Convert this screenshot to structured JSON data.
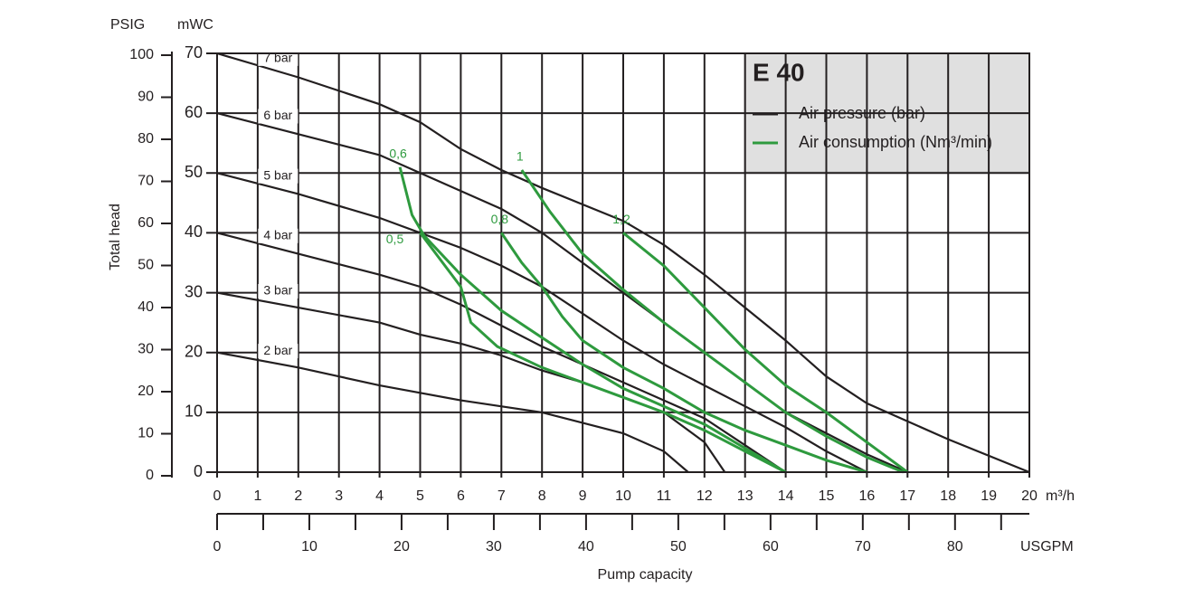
{
  "chart_data": {
    "type": "line",
    "title": "E 40",
    "x_label": "Pump capacity",
    "y_label": "Total head",
    "x_unit": "m³/h",
    "x2_unit": "USGPM",
    "y_unit": "mWC",
    "y2_unit": "PSIG",
    "xlim": [
      0,
      20
    ],
    "xticks": [
      0,
      1,
      2,
      3,
      4,
      5,
      6,
      7,
      8,
      9,
      10,
      11,
      12,
      13,
      14,
      15,
      16,
      17,
      18,
      19,
      20
    ],
    "ylim": [
      0,
      70
    ],
    "yticks": [
      0,
      10,
      20,
      30,
      40,
      50,
      60,
      70
    ],
    "y2lim": [
      0,
      100
    ],
    "y2ticks": [
      0,
      10,
      20,
      30,
      40,
      50,
      60,
      70,
      80,
      90,
      100
    ],
    "x2lim": [
      0,
      88.06
    ],
    "x2ticks": [
      0,
      10,
      20,
      30,
      40,
      50,
      60,
      70,
      80
    ],
    "x2minor_ticks": [
      5,
      15,
      25,
      35,
      45,
      55,
      65,
      75,
      85
    ],
    "grid": true,
    "legend": {
      "position": "upper right",
      "items": [
        {
          "label": "Air pressure (bar)",
          "color": "#231f20"
        },
        {
          "label": "Air consumption (Nm³/min)",
          "color": "#2e9a3e"
        }
      ]
    },
    "series": [
      {
        "name": "7 bar",
        "group": 0,
        "color": "#231f20",
        "x": [
          0,
          2,
          4,
          5,
          6,
          7,
          8,
          10,
          11,
          12,
          13,
          14,
          15,
          16,
          18,
          20
        ],
        "values": [
          70,
          66,
          61.5,
          58.5,
          54,
          50.5,
          47.5,
          42,
          38,
          33,
          27.5,
          22,
          16,
          11.5,
          5.5,
          0
        ]
      },
      {
        "name": "6 bar",
        "group": 0,
        "color": "#231f20",
        "x": [
          0,
          2,
          4,
          5,
          6,
          7,
          8,
          9,
          10,
          11,
          12,
          13,
          14,
          15,
          16,
          17
        ],
        "values": [
          60,
          56.5,
          53,
          50,
          47,
          44,
          40,
          35,
          30,
          25,
          20,
          15,
          10,
          6.5,
          3,
          0
        ]
      },
      {
        "name": "5 bar",
        "group": 0,
        "color": "#231f20",
        "x": [
          0,
          2,
          4,
          5,
          6,
          7,
          8,
          9,
          10,
          11,
          12,
          13,
          14,
          15,
          16
        ],
        "values": [
          50,
          46.5,
          42.5,
          40,
          37.5,
          34.5,
          31,
          26.5,
          22,
          18,
          14.5,
          11,
          7.5,
          3.5,
          0
        ]
      },
      {
        "name": "4 bar",
        "group": 0,
        "color": "#231f20",
        "x": [
          0,
          2,
          4,
          5,
          6,
          7,
          8,
          9,
          10,
          11,
          12,
          13,
          14
        ],
        "values": [
          40,
          36.5,
          33,
          31,
          28,
          24.5,
          21,
          18,
          15,
          12,
          9,
          4.5,
          0
        ]
      },
      {
        "name": "3 bar",
        "group": 0,
        "color": "#231f20",
        "x": [
          0,
          2,
          4,
          5,
          6,
          7,
          8,
          9,
          10,
          11,
          12,
          12.5
        ],
        "values": [
          30,
          27.5,
          25,
          23,
          21.5,
          19.5,
          17,
          15,
          12.5,
          10,
          5,
          0
        ]
      },
      {
        "name": "2 bar",
        "group": 0,
        "color": "#231f20",
        "x": [
          0,
          2,
          4,
          6,
          8,
          10,
          11,
          11.6
        ],
        "values": [
          20,
          17.5,
          14.5,
          12,
          10,
          6.5,
          3.5,
          0
        ]
      },
      {
        "name": "0,6",
        "group": 1,
        "color": "#2e9a3e",
        "x": [
          4.5,
          4.8,
          5.1,
          6,
          7,
          8,
          9,
          10,
          11,
          12,
          13,
          14
        ],
        "values": [
          51,
          43,
          39.5,
          33,
          27,
          22.5,
          18,
          14,
          11,
          8,
          4,
          0
        ]
      },
      {
        "name": "0,5",
        "group": 1,
        "color": "#2e9a3e",
        "x": [
          5,
          6,
          6.25,
          6.9,
          8,
          9,
          10,
          11,
          12,
          13,
          14
        ],
        "values": [
          40,
          31,
          25,
          21,
          17.5,
          15,
          12.5,
          10,
          7,
          3.5,
          0
        ]
      },
      {
        "name": "0,8",
        "group": 1,
        "color": "#2e9a3e",
        "x": [
          7,
          7.5,
          8,
          8.5,
          9,
          10,
          11,
          12,
          13,
          14,
          15,
          16
        ],
        "values": [
          40,
          35,
          31,
          26,
          22,
          17.5,
          14,
          10,
          7,
          4.5,
          2,
          0
        ]
      },
      {
        "name": "1",
        "group": 1,
        "color": "#2e9a3e",
        "x": [
          7.5,
          8.2,
          9,
          10,
          11,
          12,
          13,
          14,
          15,
          16,
          16.9
        ],
        "values": [
          50.5,
          43.5,
          36.5,
          30.5,
          25,
          20,
          15,
          10,
          6,
          2.5,
          0
        ]
      },
      {
        "name": "1,2",
        "group": 1,
        "color": "#2e9a3e",
        "x": [
          10,
          11,
          12,
          13,
          14,
          15,
          16,
          17
        ],
        "values": [
          40,
          34.5,
          27.5,
          20.5,
          14.5,
          10,
          5,
          0
        ]
      }
    ]
  }
}
